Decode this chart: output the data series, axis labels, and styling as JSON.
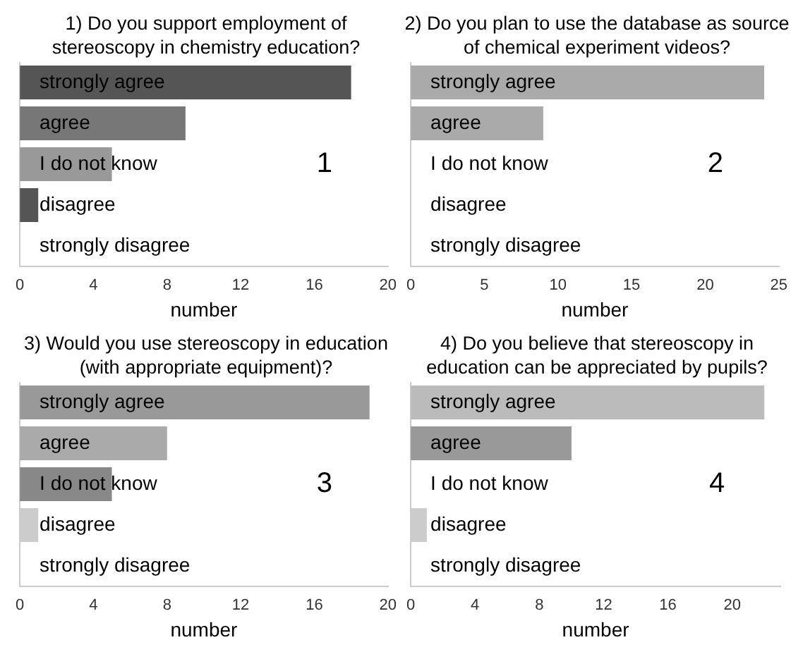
{
  "chart_data": [
    {
      "type": "bar",
      "orientation": "horizontal",
      "title": "1) Do you support employment of stereoscopy in chemistry education?",
      "xlabel": "number",
      "categories": [
        "strongly agree",
        "agree",
        "I do not know",
        "disagree",
        "strongly disagree"
      ],
      "values": [
        18,
        9,
        5,
        1,
        0
      ],
      "colors": [
        "#555555",
        "#777777",
        "#999999",
        "#555555",
        "#555555"
      ],
      "xlim": [
        0,
        20
      ],
      "xticks": [
        0,
        4,
        8,
        12,
        16,
        20
      ],
      "grid": false,
      "annotations": [
        "1"
      ]
    },
    {
      "type": "bar",
      "orientation": "horizontal",
      "title": "2) Do you plan to use the database as source of chemical experiment videos?",
      "xlabel": "number",
      "categories": [
        "strongly agree",
        "agree",
        "I do not know",
        "disagree",
        "strongly disagree"
      ],
      "values": [
        24,
        9,
        0,
        0,
        0
      ],
      "colors": [
        "#aaaaaa",
        "#aaaaaa",
        "#aaaaaa",
        "#aaaaaa",
        "#aaaaaa"
      ],
      "xlim": [
        0,
        25
      ],
      "xticks": [
        0,
        5,
        10,
        15,
        20,
        25
      ],
      "grid": false,
      "annotations": [
        "2"
      ]
    },
    {
      "type": "bar",
      "orientation": "horizontal",
      "title": "3) Would you use stereoscopy in education (with appropriate equipment)?",
      "xlabel": "number",
      "categories": [
        "strongly agree",
        "agree",
        "I do not know",
        "disagree",
        "strongly disagree"
      ],
      "values": [
        19,
        8,
        5,
        1,
        0
      ],
      "colors": [
        "#999999",
        "#aaaaaa",
        "#888888",
        "#cccccc",
        "#cccccc"
      ],
      "xlim": [
        0,
        20
      ],
      "xticks": [
        0,
        4,
        8,
        12,
        16,
        20
      ],
      "grid": false,
      "annotations": [
        "3"
      ]
    },
    {
      "type": "bar",
      "orientation": "horizontal",
      "title": "4) Do you believe that stereoscopy in education can be appreciated by pupils?",
      "xlabel": "number",
      "categories": [
        "strongly agree",
        "agree",
        "I do not know",
        "disagree",
        "strongly disagree"
      ],
      "values": [
        22,
        10,
        0,
        1,
        0
      ],
      "colors": [
        "#bbbbbb",
        "#999999",
        "#bbbbbb",
        "#cccccc",
        "#cccccc"
      ],
      "xlim": [
        0,
        23
      ],
      "xticks": [
        0,
        4,
        8,
        12,
        16,
        20
      ],
      "grid": false,
      "annotations": [
        "4"
      ]
    }
  ]
}
